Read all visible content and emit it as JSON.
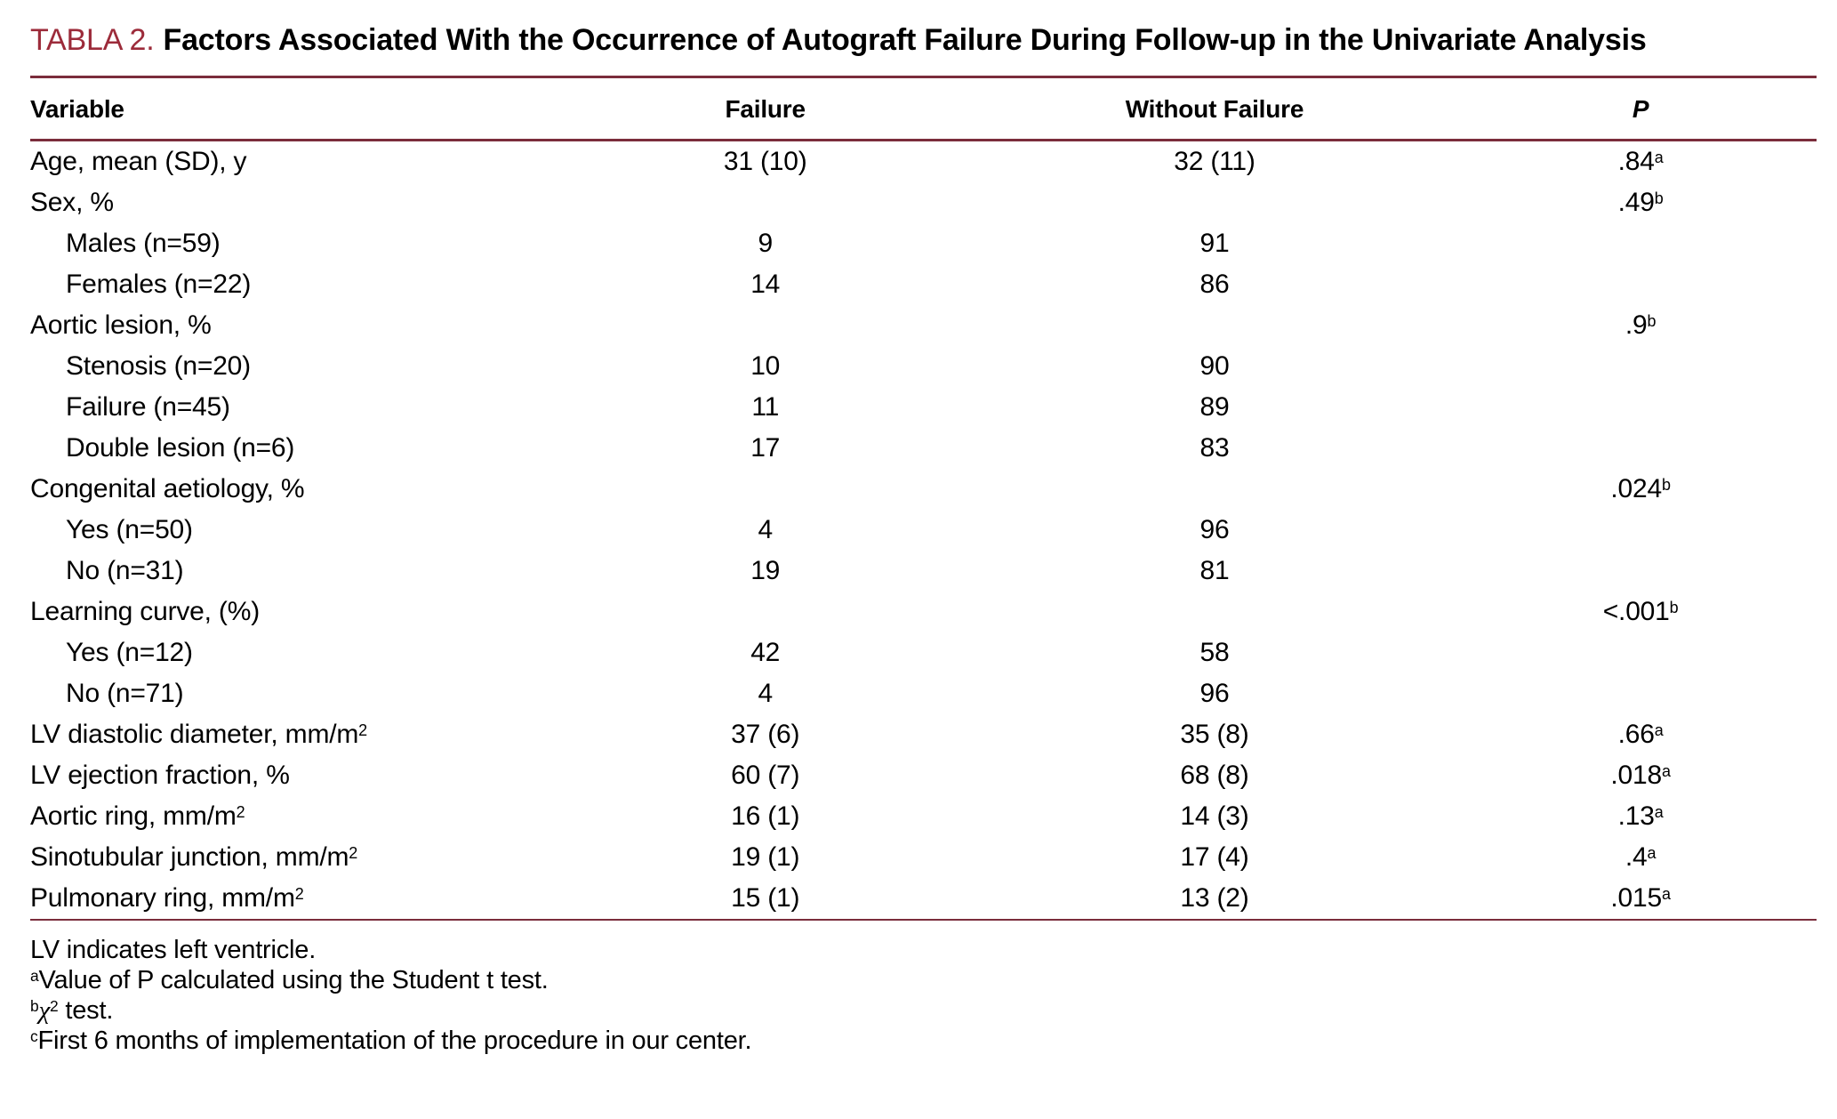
{
  "colors": {
    "accent": "#9c2b3a",
    "rule": "#7b2d3c"
  },
  "caption": {
    "label": "TABLA 2.",
    "title": "Factors Associated With the Occurrence of Autograft Failure During Follow-up in the Univariate Analysis"
  },
  "table": {
    "columns": [
      "Variable",
      "Failure",
      "Without Failure",
      "P"
    ],
    "rows": [
      {
        "variable": "Age, mean (SD), y",
        "variable_sup": "",
        "indent": false,
        "failure": "31 (10)",
        "without_failure": "32 (11)",
        "p": ".84",
        "p_sup": "a"
      },
      {
        "variable": "Sex, %",
        "variable_sup": "",
        "indent": false,
        "failure": "",
        "without_failure": "",
        "p": ".49",
        "p_sup": "b"
      },
      {
        "variable": "Males (n=59)",
        "variable_sup": "",
        "indent": true,
        "failure": "9",
        "without_failure": "91",
        "p": "",
        "p_sup": ""
      },
      {
        "variable": "Females (n=22)",
        "variable_sup": "",
        "indent": true,
        "failure": "14",
        "without_failure": "86",
        "p": "",
        "p_sup": ""
      },
      {
        "variable": "Aortic lesion, %",
        "variable_sup": "",
        "indent": false,
        "failure": "",
        "without_failure": "",
        "p": ".9",
        "p_sup": "b"
      },
      {
        "variable": "Stenosis (n=20)",
        "variable_sup": "",
        "indent": true,
        "failure": "10",
        "without_failure": "90",
        "p": "",
        "p_sup": ""
      },
      {
        "variable": "Failure (n=45)",
        "variable_sup": "",
        "indent": true,
        "failure": "11",
        "without_failure": "89",
        "p": "",
        "p_sup": ""
      },
      {
        "variable": "Double lesion (n=6)",
        "variable_sup": "",
        "indent": true,
        "failure": "17",
        "without_failure": "83",
        "p": "",
        "p_sup": ""
      },
      {
        "variable": "Congenital aetiology, %",
        "variable_sup": "",
        "indent": false,
        "failure": "",
        "without_failure": "",
        "p": ".024",
        "p_sup": "b"
      },
      {
        "variable": "Yes (n=50)",
        "variable_sup": "",
        "indent": true,
        "failure": "4",
        "without_failure": "96",
        "p": "",
        "p_sup": ""
      },
      {
        "variable": "No (n=31)",
        "variable_sup": "",
        "indent": true,
        "failure": "19",
        "without_failure": "81",
        "p": "",
        "p_sup": ""
      },
      {
        "variable": "Learning curve, (%)",
        "variable_sup": "",
        "indent": false,
        "failure": "",
        "without_failure": "",
        "p": "<.001",
        "p_sup": "b"
      },
      {
        "variable": "Yes (n=12)",
        "variable_sup": "",
        "indent": true,
        "failure": "42",
        "without_failure": "58",
        "p": "",
        "p_sup": ""
      },
      {
        "variable": "No (n=71)",
        "variable_sup": "",
        "indent": true,
        "failure": "4",
        "without_failure": "96",
        "p": "",
        "p_sup": ""
      },
      {
        "variable": "LV diastolic diameter, mm/m",
        "variable_sup": "2",
        "indent": false,
        "failure": "37 (6)",
        "without_failure": "35 (8)",
        "p": ".66",
        "p_sup": "a"
      },
      {
        "variable": "LV ejection fraction, %",
        "variable_sup": "",
        "indent": false,
        "failure": "60 (7)",
        "without_failure": "68 (8)",
        "p": ".018",
        "p_sup": "a"
      },
      {
        "variable": "Aortic ring, mm/m",
        "variable_sup": "2",
        "indent": false,
        "failure": "16 (1)",
        "without_failure": "14 (3)",
        "p": ".13",
        "p_sup": "a"
      },
      {
        "variable": "Sinotubular junction, mm/m",
        "variable_sup": "2",
        "indent": false,
        "failure": "19 (1)",
        "without_failure": "17 (4)",
        "p": ".4",
        "p_sup": "a"
      },
      {
        "variable": "Pulmonary ring, mm/m",
        "variable_sup": "2",
        "indent": false,
        "failure": "15 (1)",
        "without_failure": "13 (2)",
        "p": ".015",
        "p_sup": "a"
      }
    ],
    "footnotes": [
      [
        {
          "t": "LV indicates left ventricle."
        }
      ],
      [
        {
          "sup": "a"
        },
        {
          "t": "Value of P calculated using the Student t test."
        }
      ],
      [
        {
          "sup": "b"
        },
        {
          "t": "χ",
          "chi": true
        },
        {
          "sup": "2"
        },
        {
          "t": " test."
        }
      ],
      [
        {
          "sup": "c"
        },
        {
          "t": "First 6 months of implementation of the procedure in our center."
        }
      ]
    ]
  }
}
